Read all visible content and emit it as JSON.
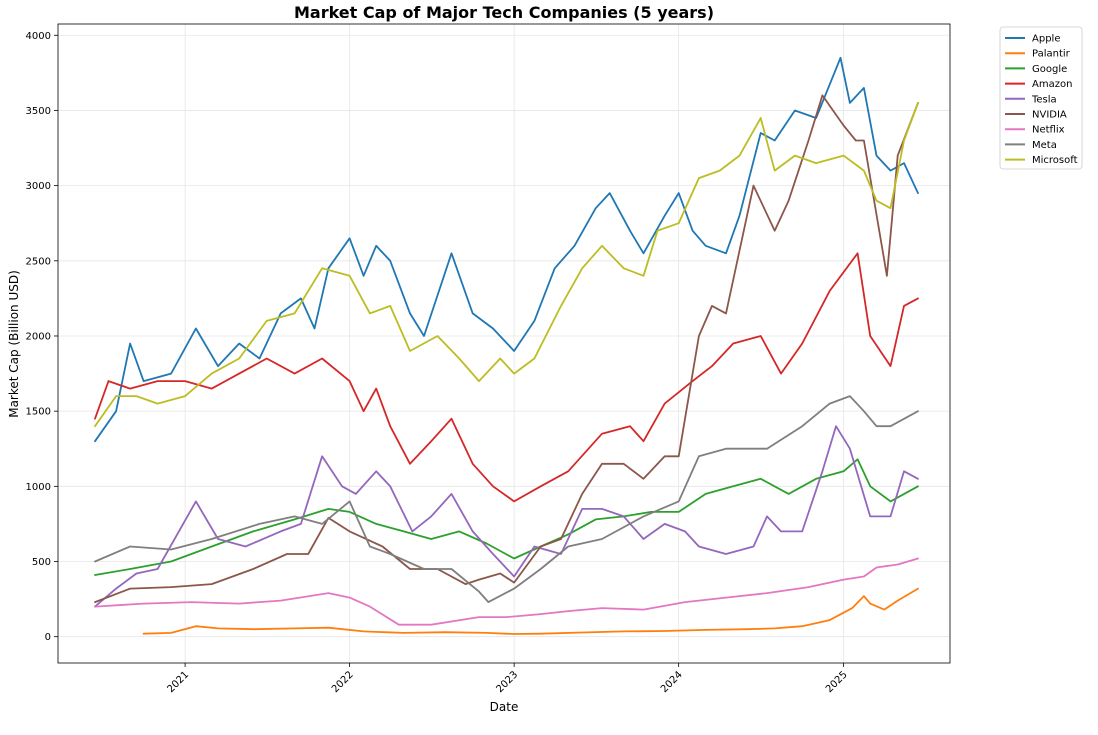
{
  "colors": {
    "Apple": "#1f77b4",
    "Palantir": "#ff7f0e",
    "Google": "#2ca02c",
    "Amazon": "#d62728",
    "Tesla": "#9467bd",
    "NVIDIA": "#8c564b",
    "Netflix": "#e377c2",
    "Meta": "#7f7f7f",
    "Microsoft": "#bcbd22"
  },
  "chart_data": {
    "type": "line",
    "title": "Market Cap of Major Tech Companies (5 years)",
    "xlabel": "Date",
    "ylabel": "Market Cap (Billion USD)",
    "xlim": [
      "2020-03-25",
      "2025-08-25"
    ],
    "ylim": [
      -175,
      4075
    ],
    "x_ticks": [
      {
        "date": "2021-01-01",
        "label": "2021"
      },
      {
        "date": "2022-01-01",
        "label": "2022"
      },
      {
        "date": "2023-01-01",
        "label": "2023"
      },
      {
        "date": "2024-01-01",
        "label": "2024"
      },
      {
        "date": "2025-01-01",
        "label": "2025"
      }
    ],
    "y_ticks": [
      0,
      500,
      1000,
      1500,
      2000,
      2500,
      3000,
      3500,
      4000
    ],
    "grid": true,
    "legend_position": "outside top-right",
    "series": [
      {
        "name": "Apple",
        "x": [
          "2020-06-15",
          "2020-08-01",
          "2020-09-01",
          "2020-10-01",
          "2020-12-01",
          "2021-01-25",
          "2021-03-15",
          "2021-05-01",
          "2021-06-15",
          "2021-08-01",
          "2021-09-15",
          "2021-10-15",
          "2021-11-15",
          "2022-01-01",
          "2022-02-01",
          "2022-03-01",
          "2022-04-01",
          "2022-05-15",
          "2022-06-15",
          "2022-08-15",
          "2022-10-01",
          "2022-11-15",
          "2023-01-01",
          "2023-02-15",
          "2023-04-01",
          "2023-05-15",
          "2023-07-01",
          "2023-08-01",
          "2023-09-15",
          "2023-10-15",
          "2023-12-01",
          "2024-01-01",
          "2024-02-01",
          "2024-03-01",
          "2024-04-15",
          "2024-05-15",
          "2024-07-01",
          "2024-08-01",
          "2024-09-15",
          "2024-11-01",
          "2024-12-25",
          "2025-01-15",
          "2025-02-15",
          "2025-03-15",
          "2025-04-15",
          "2025-05-15",
          "2025-06-15"
        ],
        "values": [
          1300,
          1500,
          1950,
          1700,
          1750,
          2050,
          1800,
          1950,
          1850,
          2150,
          2250,
          2050,
          2450,
          2650,
          2400,
          2600,
          2500,
          2150,
          2000,
          2550,
          2150,
          2050,
          1900,
          2100,
          2450,
          2600,
          2850,
          2950,
          2700,
          2550,
          2800,
          2950,
          2700,
          2600,
          2550,
          2800,
          3350,
          3300,
          3500,
          3450,
          3850,
          3550,
          3650,
          3200,
          3100,
          3150,
          2950
        ]
      },
      {
        "name": "Palantir",
        "x": [
          "2020-10-01",
          "2020-12-01",
          "2021-01-25",
          "2021-03-15",
          "2021-06-01",
          "2021-09-01",
          "2021-11-15",
          "2022-02-01",
          "2022-05-01",
          "2022-08-01",
          "2022-11-01",
          "2023-01-01",
          "2023-03-01",
          "2023-06-01",
          "2023-09-01",
          "2023-12-01",
          "2024-03-01",
          "2024-06-01",
          "2024-08-01",
          "2024-10-01",
          "2024-12-01",
          "2025-01-20",
          "2025-02-15",
          "2025-03-01",
          "2025-04-01",
          "2025-05-01",
          "2025-06-15"
        ],
        "values": [
          20,
          25,
          70,
          55,
          50,
          55,
          60,
          35,
          25,
          30,
          25,
          18,
          20,
          28,
          35,
          38,
          45,
          50,
          55,
          70,
          110,
          190,
          270,
          220,
          180,
          240,
          320
        ]
      },
      {
        "name": "Google",
        "x": [
          "2020-06-15",
          "2020-09-01",
          "2020-12-01",
          "2021-03-01",
          "2021-06-01",
          "2021-09-01",
          "2021-11-15",
          "2022-01-01",
          "2022-03-01",
          "2022-05-01",
          "2022-07-01",
          "2022-09-01",
          "2022-11-01",
          "2023-01-01",
          "2023-03-01",
          "2023-05-01",
          "2023-07-01",
          "2023-09-01",
          "2023-11-01",
          "2024-01-01",
          "2024-03-01",
          "2024-05-01",
          "2024-07-01",
          "2024-09-01",
          "2024-11-01",
          "2025-01-01",
          "2025-02-01",
          "2025-03-01",
          "2025-04-15",
          "2025-06-15"
        ],
        "values": [
          410,
          450,
          500,
          600,
          700,
          780,
          850,
          830,
          750,
          700,
          650,
          700,
          620,
          520,
          600,
          680,
          780,
          800,
          830,
          830,
          950,
          1000,
          1050,
          950,
          1050,
          1100,
          1180,
          1000,
          900,
          1000
        ]
      },
      {
        "name": "Amazon",
        "x": [
          "2020-06-15",
          "2020-07-15",
          "2020-09-01",
          "2020-11-01",
          "2021-01-01",
          "2021-03-01",
          "2021-05-01",
          "2021-07-01",
          "2021-09-01",
          "2021-11-01",
          "2022-01-01",
          "2022-02-01",
          "2022-03-01",
          "2022-04-01",
          "2022-05-15",
          "2022-07-01",
          "2022-08-15",
          "2022-10-01",
          "2022-11-15",
          "2023-01-01",
          "2023-03-01",
          "2023-05-01",
          "2023-07-15",
          "2023-09-15",
          "2023-10-15",
          "2023-12-01",
          "2024-02-01",
          "2024-03-15",
          "2024-05-01",
          "2024-07-01",
          "2024-08-15",
          "2024-10-01",
          "2024-12-01",
          "2025-02-01",
          "2025-03-01",
          "2025-04-15",
          "2025-05-15",
          "2025-06-15"
        ],
        "values": [
          1450,
          1700,
          1650,
          1700,
          1700,
          1650,
          1750,
          1850,
          1750,
          1850,
          1700,
          1500,
          1650,
          1400,
          1150,
          1300,
          1450,
          1150,
          1000,
          900,
          1000,
          1100,
          1350,
          1400,
          1300,
          1550,
          1700,
          1800,
          1950,
          2000,
          1750,
          1950,
          2300,
          2550,
          2000,
          1800,
          2200,
          2250
        ]
      },
      {
        "name": "Tesla",
        "x": [
          "2020-06-15",
          "2020-08-01",
          "2020-09-15",
          "2020-11-01",
          "2021-01-25",
          "2021-03-15",
          "2021-05-15",
          "2021-08-01",
          "2021-09-15",
          "2021-11-01",
          "2021-12-15",
          "2022-01-15",
          "2022-03-01",
          "2022-04-01",
          "2022-05-20",
          "2022-07-01",
          "2022-08-15",
          "2022-10-01",
          "2022-11-15",
          "2023-01-01",
          "2023-02-15",
          "2023-04-15",
          "2023-06-01",
          "2023-07-15",
          "2023-09-01",
          "2023-10-15",
          "2023-12-01",
          "2024-01-15",
          "2024-02-15",
          "2024-04-15",
          "2024-06-15",
          "2024-07-15",
          "2024-08-15",
          "2024-10-01",
          "2024-11-15",
          "2024-12-15",
          "2025-01-15",
          "2025-03-01",
          "2025-04-15",
          "2025-05-15",
          "2025-06-15"
        ],
        "values": [
          200,
          320,
          420,
          450,
          900,
          650,
          600,
          700,
          750,
          1200,
          1000,
          950,
          1100,
          1000,
          700,
          800,
          950,
          700,
          550,
          400,
          600,
          550,
          850,
          850,
          800,
          650,
          750,
          700,
          600,
          550,
          600,
          800,
          700,
          700,
          1100,
          1400,
          1250,
          800,
          800,
          1100,
          1050
        ]
      },
      {
        "name": "NVIDIA",
        "x": [
          "2020-06-15",
          "2020-09-01",
          "2020-12-01",
          "2021-03-01",
          "2021-06-01",
          "2021-08-15",
          "2021-10-01",
          "2021-11-15",
          "2022-01-01",
          "2022-03-15",
          "2022-05-15",
          "2022-07-15",
          "2022-09-15",
          "2022-10-15",
          "2022-12-01",
          "2023-01-01",
          "2023-03-01",
          "2023-04-15",
          "2023-06-01",
          "2023-07-15",
          "2023-09-01",
          "2023-10-15",
          "2023-12-01",
          "2024-01-01",
          "2024-02-15",
          "2024-03-15",
          "2024-04-15",
          "2024-06-15",
          "2024-08-01",
          "2024-09-01",
          "2024-10-15",
          "2024-11-15",
          "2025-01-01",
          "2025-01-28",
          "2025-02-15",
          "2025-04-07",
          "2025-05-01",
          "2025-06-15"
        ],
        "values": [
          230,
          320,
          330,
          350,
          450,
          550,
          550,
          790,
          700,
          600,
          450,
          450,
          350,
          380,
          420,
          360,
          600,
          650,
          950,
          1150,
          1150,
          1050,
          1200,
          1200,
          2000,
          2200,
          2150,
          3000,
          2700,
          2900,
          3300,
          3600,
          3400,
          3300,
          3300,
          2400,
          3200,
          3550
        ]
      },
      {
        "name": "Netflix",
        "x": [
          "2020-06-15",
          "2020-10-01",
          "2021-01-15",
          "2021-05-01",
          "2021-08-01",
          "2021-11-15",
          "2022-01-01",
          "2022-02-15",
          "2022-04-20",
          "2022-07-01",
          "2022-10-15",
          "2022-12-15",
          "2023-03-01",
          "2023-05-01",
          "2023-07-15",
          "2023-10-15",
          "2024-01-15",
          "2024-04-15",
          "2024-07-15",
          "2024-10-15",
          "2025-01-01",
          "2025-02-15",
          "2025-03-15",
          "2025-05-01",
          "2025-06-15"
        ],
        "values": [
          200,
          220,
          230,
          220,
          240,
          290,
          260,
          200,
          80,
          80,
          130,
          130,
          150,
          170,
          190,
          180,
          230,
          260,
          290,
          330,
          380,
          400,
          460,
          480,
          520
        ]
      },
      {
        "name": "Meta",
        "x": [
          "2020-06-15",
          "2020-09-01",
          "2020-12-01",
          "2021-03-01",
          "2021-06-15",
          "2021-09-01",
          "2021-11-01",
          "2022-01-01",
          "2022-02-15",
          "2022-04-01",
          "2022-06-15",
          "2022-08-15",
          "2022-10-15",
          "2022-11-05",
          "2023-01-01",
          "2023-03-01",
          "2023-05-01",
          "2023-07-15",
          "2023-10-15",
          "2024-01-01",
          "2024-02-15",
          "2024-04-15",
          "2024-07-15",
          "2024-10-01",
          "2024-12-01",
          "2025-01-15",
          "2025-02-15",
          "2025-03-15",
          "2025-04-15",
          "2025-06-15"
        ],
        "values": [
          500,
          600,
          580,
          650,
          750,
          800,
          750,
          900,
          600,
          550,
          450,
          450,
          300,
          230,
          320,
          450,
          600,
          650,
          800,
          900,
          1200,
          1250,
          1250,
          1400,
          1550,
          1600,
          1500,
          1400,
          1400,
          1500
        ]
      },
      {
        "name": "Microsoft",
        "x": [
          "2020-06-15",
          "2020-08-01",
          "2020-09-15",
          "2020-11-01",
          "2021-01-01",
          "2021-03-01",
          "2021-05-01",
          "2021-07-01",
          "2021-09-01",
          "2021-11-01",
          "2022-01-01",
          "2022-02-15",
          "2022-04-01",
          "2022-05-15",
          "2022-07-15",
          "2022-09-01",
          "2022-10-15",
          "2022-12-01",
          "2023-01-01",
          "2023-02-15",
          "2023-04-15",
          "2023-06-01",
          "2023-07-15",
          "2023-09-01",
          "2023-10-15",
          "2023-11-15",
          "2024-01-01",
          "2024-02-15",
          "2024-04-01",
          "2024-05-15",
          "2024-07-01",
          "2024-08-01",
          "2024-09-15",
          "2024-11-01",
          "2025-01-01",
          "2025-02-15",
          "2025-03-15",
          "2025-04-15",
          "2025-05-15",
          "2025-06-15"
        ],
        "values": [
          1400,
          1600,
          1600,
          1550,
          1600,
          1750,
          1850,
          2100,
          2150,
          2450,
          2400,
          2150,
          2200,
          1900,
          2000,
          1850,
          1700,
          1850,
          1750,
          1850,
          2200,
          2450,
          2600,
          2450,
          2400,
          2700,
          2750,
          3050,
          3100,
          3200,
          3450,
          3100,
          3200,
          3150,
          3200,
          3100,
          2900,
          2850,
          3300,
          3550
        ]
      }
    ]
  }
}
